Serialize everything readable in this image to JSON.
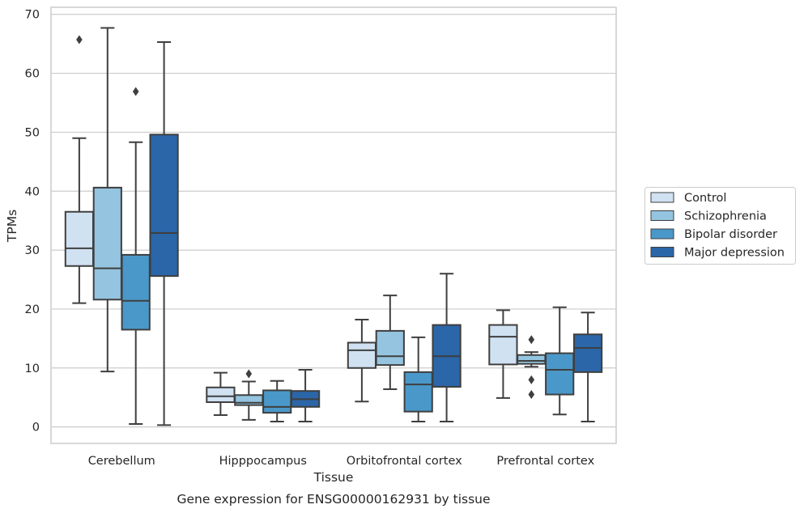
{
  "chart_data": {
    "type": "box",
    "title": "",
    "caption": "Gene expression for ENSG00000162931 by tissue",
    "xlabel": "Tissue",
    "ylabel": "TPMs",
    "ylim": [
      -2.8,
      71.2
    ],
    "yticks": [
      0,
      10,
      20,
      30,
      40,
      50,
      60,
      70
    ],
    "grid": "horizontal",
    "legend_position": "right",
    "categories": [
      "Cerebellum",
      "Hipppocampus",
      "Orbitofrontal cortex",
      "Prefrontal cortex"
    ],
    "series": [
      {
        "name": "Control",
        "color": "#d0e1f2",
        "boxes": [
          {
            "whislo": 21.0,
            "q1": 27.3,
            "med": 30.3,
            "q3": 36.5,
            "whishi": 49.0,
            "fliers": [
              65.7
            ]
          },
          {
            "whislo": 2.0,
            "q1": 4.2,
            "med": 5.2,
            "q3": 6.7,
            "whishi": 9.2,
            "fliers": []
          },
          {
            "whislo": 4.3,
            "q1": 10.0,
            "med": 13.0,
            "q3": 14.3,
            "whishi": 18.2,
            "fliers": []
          },
          {
            "whislo": 4.9,
            "q1": 10.6,
            "med": 15.3,
            "q3": 17.3,
            "whishi": 19.8,
            "fliers": []
          }
        ]
      },
      {
        "name": "Schizophrenia",
        "color": "#94c4df",
        "boxes": [
          {
            "whislo": 9.4,
            "q1": 21.6,
            "med": 26.9,
            "q3": 40.6,
            "whishi": 67.7,
            "fliers": []
          },
          {
            "whislo": 1.2,
            "q1": 3.7,
            "med": 4.1,
            "q3": 5.4,
            "whishi": 7.7,
            "fliers": [
              9.0
            ]
          },
          {
            "whislo": 6.4,
            "q1": 10.5,
            "med": 12.0,
            "q3": 16.3,
            "whishi": 22.3,
            "fliers": []
          },
          {
            "whislo": 10.2,
            "q1": 10.7,
            "med": 11.2,
            "q3": 12.2,
            "whishi": 12.7,
            "fliers": [
              14.8,
              8.0,
              5.5
            ]
          }
        ]
      },
      {
        "name": "Bipolar disorder",
        "color": "#4a98c9",
        "boxes": [
          {
            "whislo": 0.5,
            "q1": 16.5,
            "med": 21.4,
            "q3": 29.2,
            "whishi": 48.3,
            "fliers": [
              56.9
            ]
          },
          {
            "whislo": 0.9,
            "q1": 2.4,
            "med": 3.4,
            "q3": 6.2,
            "whishi": 7.8,
            "fliers": []
          },
          {
            "whislo": 0.9,
            "q1": 2.6,
            "med": 7.2,
            "q3": 9.3,
            "whishi": 15.2,
            "fliers": []
          },
          {
            "whislo": 2.1,
            "q1": 5.5,
            "med": 9.7,
            "q3": 12.5,
            "whishi": 20.3,
            "fliers": []
          }
        ]
      },
      {
        "name": "Major depression",
        "color": "#2a66a8",
        "boxes": [
          {
            "whislo": 0.3,
            "q1": 25.6,
            "med": 32.9,
            "q3": 49.6,
            "whishi": 65.3,
            "fliers": []
          },
          {
            "whislo": 0.9,
            "q1": 3.4,
            "med": 4.7,
            "q3": 6.1,
            "whishi": 9.7,
            "fliers": []
          },
          {
            "whislo": 0.9,
            "q1": 6.8,
            "med": 12.0,
            "q3": 17.3,
            "whishi": 26.0,
            "fliers": []
          },
          {
            "whislo": 0.9,
            "q1": 9.3,
            "med": 13.4,
            "q3": 15.7,
            "whishi": 19.4,
            "fliers": []
          }
        ]
      }
    ]
  }
}
